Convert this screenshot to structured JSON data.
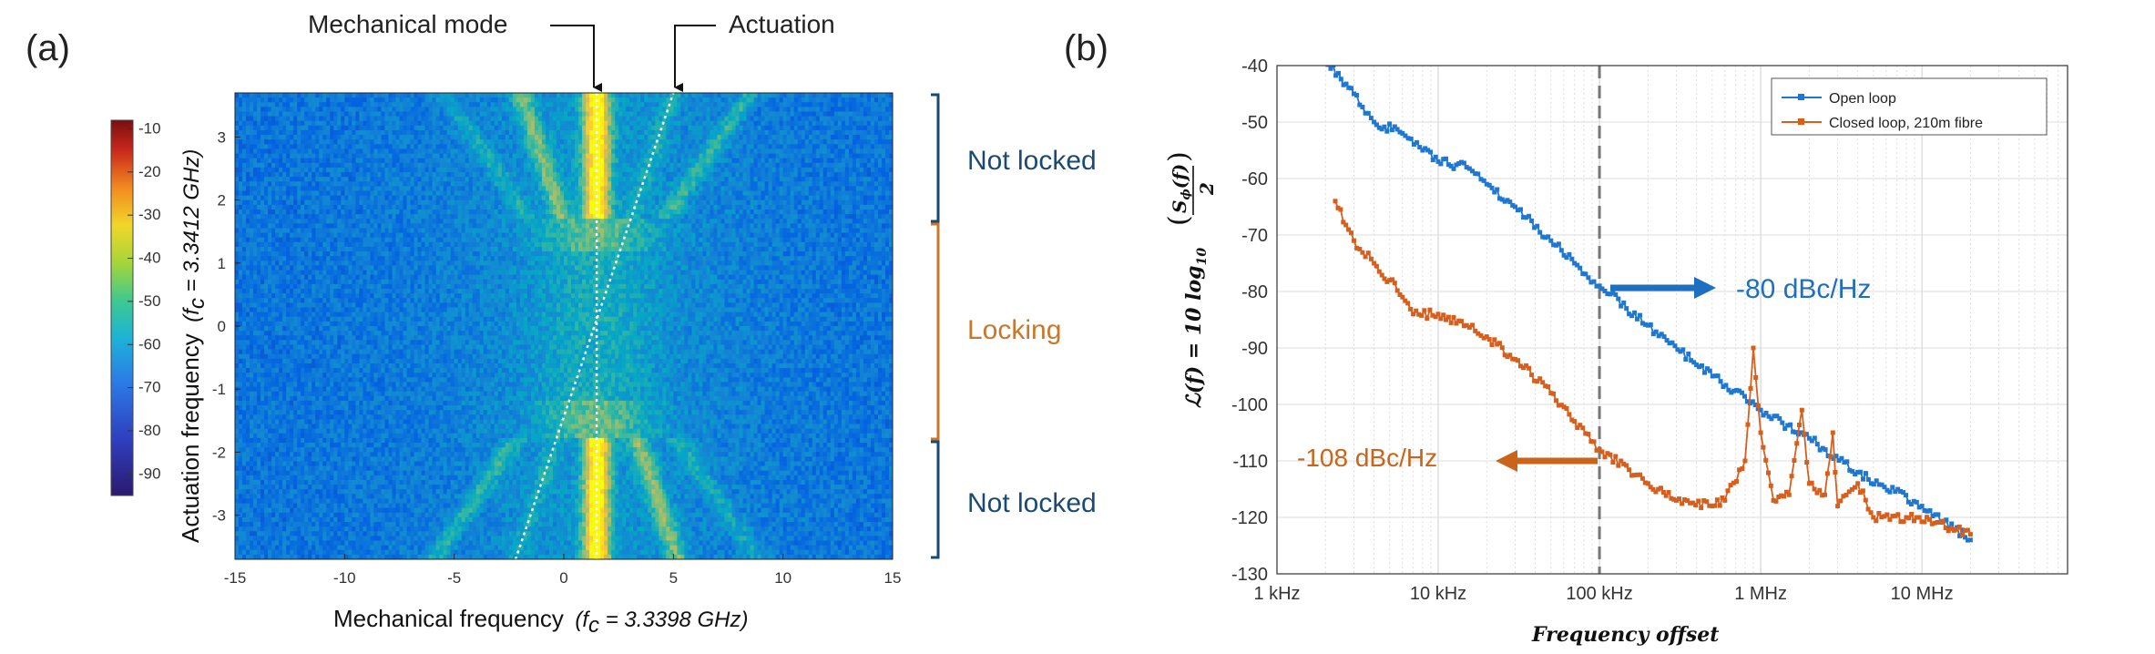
{
  "panel_a": {
    "label": "(a)",
    "annotations": {
      "mechanical_mode": "Mechanical mode",
      "actuation": "Actuation"
    },
    "regions": {
      "top": "Not locked",
      "middle": "Locking",
      "bottom": "Not locked"
    },
    "colors": {
      "not_locked": "#1a4a73",
      "locking": "#c9772a"
    },
    "xlabel_main": "Mechanical frequency",
    "xlabel_note": "(f",
    "xlabel_note_sub": "c",
    "xlabel_note_rest": " = 3.3398 GHz)",
    "ylabel_main": "Actuation frequency",
    "ylabel_note": "(f",
    "ylabel_note_sub": "c",
    "ylabel_note_rest": " = 3.3412 GHz)"
  },
  "panel_b": {
    "label": "(b)",
    "ylabel": "ℒ(f) = 10 log",
    "ylabel_sub": "10",
    "ylabel_frac_num": "S",
    "ylabel_frac_num_sub": "ϕ",
    "ylabel_frac_num_rest": "(f)",
    "ylabel_frac_den": "2",
    "xlabel": "Frequency offset",
    "annotation_blue": "-80 dBc/Hz",
    "annotation_orange": "-108 dBc/Hz",
    "legend": [
      "Open loop",
      "Closed loop, 210m fibre"
    ]
  },
  "chart_data": [
    {
      "type": "heatmap",
      "x_ticks": [
        "-15",
        "-10",
        "-5",
        "0",
        "5",
        "10",
        "15"
      ],
      "y_ticks": [
        "3",
        "2",
        "1",
        "0",
        "-1",
        "-2",
        "-3"
      ],
      "xlim": [
        -15,
        15
      ],
      "ylim": [
        -3.7,
        3.7
      ],
      "colorbar_ticks": [
        "-10",
        "-20",
        "-30",
        "-40",
        "-50",
        "-60",
        "-70",
        "-80",
        "-90"
      ],
      "colorbar_range": [
        -95,
        -8
      ],
      "colormap": "parula",
      "mechanical_mode_x": 1.5,
      "actuation_line": {
        "x_at_ymin": -2.2,
        "x_at_ymax": 5.0
      },
      "lock_range_y": [
        -1.8,
        1.7
      ]
    },
    {
      "type": "line",
      "x_scale": "log",
      "x_ticks": [
        "1 kHz",
        "10 kHz",
        "100 kHz",
        "1 MHz",
        "10 MHz"
      ],
      "y_ticks": [
        "-40",
        "-50",
        "-60",
        "-70",
        "-80",
        "-90",
        "-100",
        "-110",
        "-120",
        "-130"
      ],
      "xlim": [
        1000,
        80000000
      ],
      "ylim": [
        -130,
        -40
      ],
      "grid": true,
      "legend_position": "top-right",
      "vline_x": 100000,
      "series": [
        {
          "name": "Open loop",
          "color": "#1f77d0",
          "points": [
            [
              2000,
              -39
            ],
            [
              3000,
              -45
            ],
            [
              4000,
              -50
            ],
            [
              6000,
              -52
            ],
            [
              8000,
              -55
            ],
            [
              10000,
              -57
            ],
            [
              15000,
              -58
            ],
            [
              20000,
              -61
            ],
            [
              30000,
              -65
            ],
            [
              50000,
              -71
            ],
            [
              70000,
              -75
            ],
            [
              100000,
              -79
            ],
            [
              200000,
              -86
            ],
            [
              400000,
              -93
            ],
            [
              1000000,
              -101
            ],
            [
              2000000,
              -106
            ],
            [
              4000000,
              -112
            ],
            [
              10000000,
              -118
            ],
            [
              20000000,
              -124
            ]
          ]
        },
        {
          "name": "Closed loop, 210m fibre",
          "color": "#d65f1e",
          "points": [
            [
              2300,
              -64
            ],
            [
              3000,
              -71
            ],
            [
              4000,
              -75
            ],
            [
              5000,
              -78
            ],
            [
              6000,
              -81
            ],
            [
              7000,
              -84
            ],
            [
              10000,
              -84
            ],
            [
              15000,
              -86
            ],
            [
              20000,
              -88
            ],
            [
              30000,
              -92
            ],
            [
              50000,
              -98
            ],
            [
              70000,
              -103
            ],
            [
              100000,
              -108
            ],
            [
              200000,
              -114
            ],
            [
              300000,
              -117
            ],
            [
              500000,
              -118
            ],
            [
              600000,
              -117
            ],
            [
              800000,
              -110
            ],
            [
              900000,
              -90
            ],
            [
              1000000,
              -105
            ],
            [
              1200000,
              -117
            ],
            [
              1500000,
              -116
            ],
            [
              1800000,
              -101
            ],
            [
              2000000,
              -114
            ],
            [
              2500000,
              -116
            ],
            [
              2800000,
              -105
            ],
            [
              3000000,
              -118
            ],
            [
              4000000,
              -114
            ],
            [
              5000000,
              -120
            ],
            [
              8000000,
              -120
            ],
            [
              12000000,
              -121
            ],
            [
              20000000,
              -123
            ]
          ]
        }
      ],
      "annotations": [
        {
          "text": "-80 dBc/Hz",
          "at": [
            100000,
            -79
          ]
        },
        {
          "text": "-108 dBc/Hz",
          "at": [
            100000,
            -108
          ]
        }
      ]
    }
  ]
}
